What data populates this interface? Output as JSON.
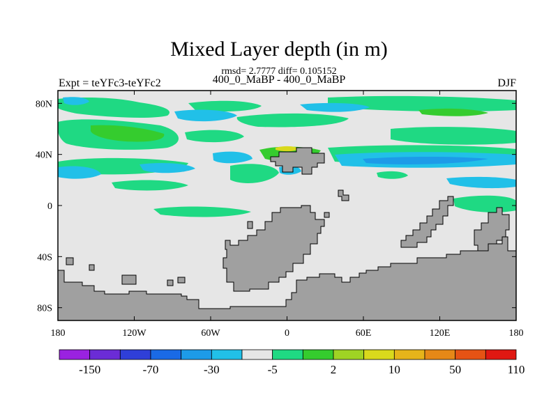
{
  "header": {
    "title": "Mixed Layer depth (in m)",
    "stats": "rmsd= 2.7777 diff= 0.105152",
    "subtitle": "400_0_MaBP - 400_0_MaBP",
    "left_label": "Expt = teYFc3-teYFc2",
    "right_label": "DJF"
  },
  "chart_data": {
    "type": "heatmap",
    "title": "Mixed Layer depth (in m)",
    "x_ticks": [
      "180",
      "120W",
      "60W",
      "0",
      "60E",
      "120E",
      "180"
    ],
    "y_ticks": [
      "80N",
      "40N",
      "0",
      "40S",
      "80S"
    ],
    "xlim": [
      -180,
      180
    ],
    "ylim": [
      -90,
      90
    ],
    "colorbar": {
      "labels": [
        "-150",
        "-70",
        "-30",
        "-5",
        "2",
        "10",
        "50",
        "110"
      ],
      "colors": [
        "#9a22e0",
        "#6b2cd6",
        "#2f3fd8",
        "#1a6ae6",
        "#1d9be8",
        "#21c0e8",
        "#e6e6e6",
        "#1fd983",
        "#35cc2e",
        "#9fd324",
        "#d9d91c",
        "#e6b41a",
        "#e68817",
        "#e65314",
        "#e01812"
      ]
    },
    "land_color": "#a0a0a0",
    "ocean_color": "#e6e6e6"
  }
}
